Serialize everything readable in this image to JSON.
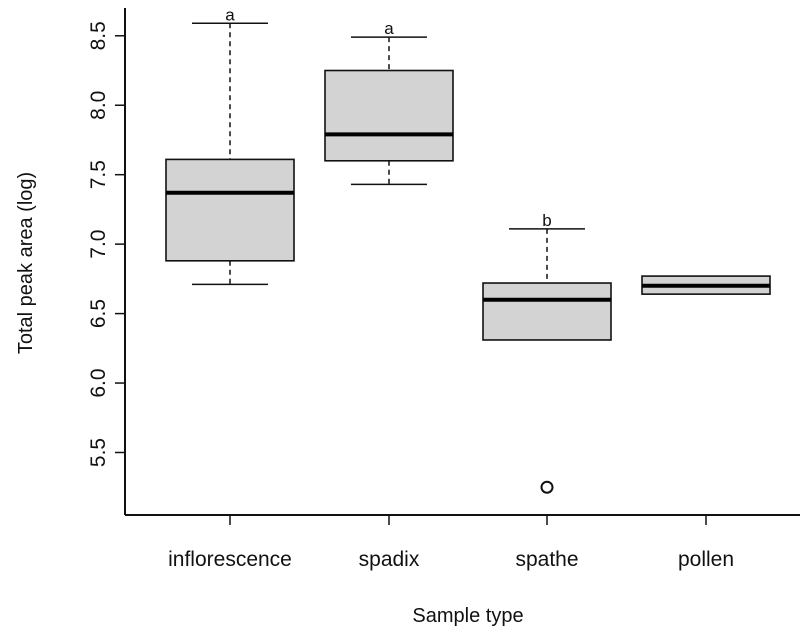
{
  "chart_data": {
    "type": "boxplot",
    "xlabel": "Sample type",
    "ylabel": "Total peak area (log)",
    "ylim": [
      5.05,
      8.7
    ],
    "yticks": [
      "5.5",
      "6.0",
      "6.5",
      "7.0",
      "7.5",
      "8.0",
      "8.5"
    ],
    "grid": false,
    "box_fill": "#d3d3d3",
    "categories": [
      "inflorescence",
      "spadix",
      "spathe",
      "pollen"
    ],
    "boxes": [
      {
        "category": "inflorescence",
        "whisker_low": 6.71,
        "q1": 6.88,
        "median": 7.37,
        "q3": 7.61,
        "whisker_high": 8.59,
        "outliers": [],
        "group_label": "a"
      },
      {
        "category": "spadix",
        "whisker_low": 7.43,
        "q1": 7.6,
        "median": 7.79,
        "q3": 8.25,
        "whisker_high": 8.49,
        "outliers": [],
        "group_label": "a"
      },
      {
        "category": "spathe",
        "whisker_low": 6.31,
        "q1": 6.31,
        "median": 6.6,
        "q3": 6.72,
        "whisker_high": 7.11,
        "outliers": [
          5.25
        ],
        "group_label": "b"
      },
      {
        "category": "pollen",
        "whisker_low": 6.64,
        "q1": 6.64,
        "median": 6.7,
        "q3": 6.77,
        "whisker_high": 6.77,
        "outliers": [],
        "group_label": ""
      }
    ]
  }
}
